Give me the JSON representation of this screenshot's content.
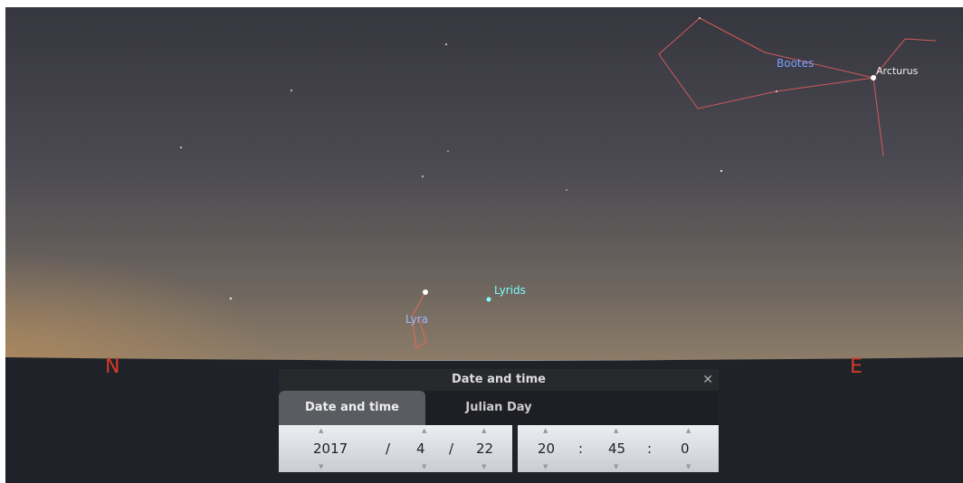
{
  "sky": {
    "constellations": [
      "Bootes",
      "Lyra"
    ],
    "stars": [
      "Arcturus"
    ],
    "meteor_shower": "Lyrids",
    "cardinal": [
      "N",
      "E"
    ]
  },
  "dialog": {
    "title": "Date and time",
    "tabs": [
      "Date and time",
      "Julian Day"
    ],
    "date": {
      "year": 2017,
      "month": 4,
      "day": 22,
      "separator": "/"
    },
    "time": {
      "hour": 20,
      "minute": 45,
      "second": 0,
      "separator": ":"
    }
  }
}
